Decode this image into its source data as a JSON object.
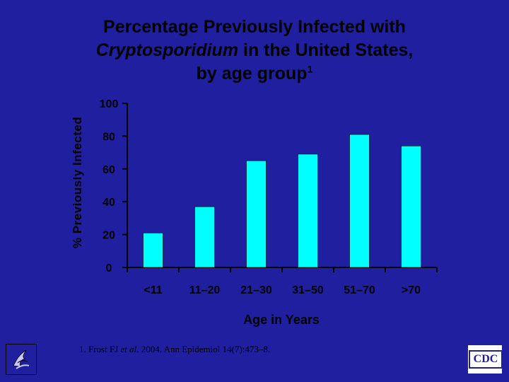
{
  "title": {
    "line1": "Percentage Previously Infected with",
    "line2_italic": "Cryptosporidium",
    "line2_rest": " in the United States,",
    "line3": "by age group",
    "line3_sup": "1"
  },
  "chart_data": {
    "type": "bar",
    "title": "Percentage Previously Infected with Cryptosporidium in the United States, by age group",
    "xlabel": "Age in Years",
    "ylabel": "% Previously Infected",
    "categories": [
      "<11",
      "11–20",
      "21–30",
      "31–50",
      "51–70",
      ">70"
    ],
    "values": [
      21,
      37,
      65,
      69,
      81,
      74
    ],
    "ylim": [
      0,
      100
    ],
    "yticks": [
      0,
      20,
      40,
      60,
      80,
      100
    ],
    "ytick_labels": [
      "0",
      "20",
      "40",
      "60",
      "80",
      "100"
    ],
    "grid": false,
    "bar_color": "#00ffff"
  },
  "footnote": {
    "prefix": "1. Frost FJ ",
    "italic": "et al",
    "suffix": ". 2004. Ann Epidemiol 14(7):473–8."
  },
  "logos": {
    "hhs_icon": "hhs-eagle-icon",
    "cdc_text": "CDC"
  },
  "colors": {
    "background": "#1f1fa0",
    "bar": "#00ffff",
    "text": "#000000"
  }
}
